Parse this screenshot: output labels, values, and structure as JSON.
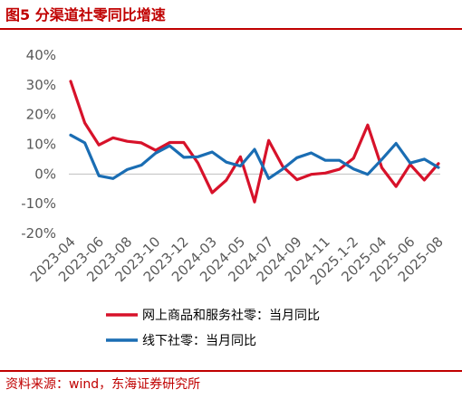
{
  "header": {
    "title": "图5  分渠道社零同比增速"
  },
  "footer": {
    "source": "资料来源：wind，东海证券研究所"
  },
  "colors": {
    "accent": "#c00000",
    "online": "#d7122a",
    "offline": "#1a6db3"
  },
  "chart_data": {
    "type": "line",
    "ylim": [
      -20,
      40
    ],
    "yticks": [
      -20,
      -10,
      0,
      10,
      20,
      30,
      40
    ],
    "ytick_format": "{v}%",
    "grid": false,
    "legend_position": "bottom",
    "categories": [
      "2023-04",
      "2023-05",
      "2023-06",
      "2023-07",
      "2023-08",
      "2023-09",
      "2023-10",
      "2023-11",
      "2023-12",
      "2024-01",
      "2024-03",
      "2024-04",
      "2024-05",
      "2024-06",
      "2024-07",
      "2024-08",
      "2024-09",
      "2024-10",
      "2024-11",
      "2024-12",
      "2025.1-2",
      "2025-03",
      "2025-04",
      "2025-05",
      "2025-06",
      "2025-07",
      "2025-08"
    ],
    "xtick_labels": [
      "2023-04",
      "2023-06",
      "2023-08",
      "2023-10",
      "2023-12",
      "2024-03",
      "2024-05",
      "2024-07",
      "2024-09",
      "2024-11",
      "2025.1-2",
      "2025-04",
      "2025-06",
      "2025-08"
    ],
    "series": [
      {
        "name": "网上商品和服务社零：当月同比",
        "values": [
          31.2,
          17.2,
          9.8,
          12.2,
          11.0,
          10.5,
          8.0,
          10.6,
          10.6,
          3.7,
          -6.3,
          -2.1,
          5.8,
          -9.4,
          11.3,
          2.5,
          -1.9,
          -0.1,
          0.3,
          1.6,
          5.3,
          16.5,
          2.1,
          -4.2,
          3.2,
          -2.0,
          3.5
        ]
      },
      {
        "name": "线下社零：当月同比",
        "values": [
          13.1,
          10.5,
          -0.6,
          -1.5,
          1.5,
          3.0,
          7.0,
          9.5,
          5.6,
          5.8,
          7.4,
          4.0,
          2.7,
          8.3,
          -1.5,
          1.7,
          5.5,
          7.1,
          4.6,
          4.6,
          1.7,
          -0.1,
          4.9,
          10.3,
          3.7,
          5.0,
          2.2
        ]
      }
    ]
  }
}
